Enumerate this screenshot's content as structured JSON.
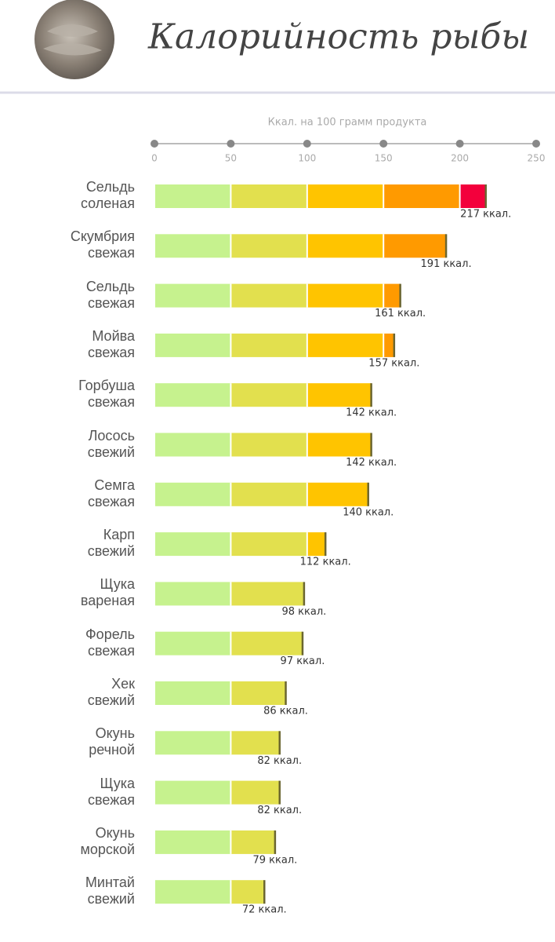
{
  "chart_data": {
    "type": "bar",
    "orientation": "horizontal",
    "title": "Калорийность рыбы",
    "xlabel": "Ккал. на 100 грамм продукта",
    "categories": [
      "Сельдь соленая",
      "Скумбрия свежая",
      "Сельдь свежая",
      "Мойва свежая",
      "Горбуша свежая",
      "Лосось свежий",
      "Семга свежая",
      "Карп свежий",
      "Щука вареная",
      "Форель свежая",
      "Хек свежий",
      "Окунь речной",
      "Щука свежая",
      "Окунь морской",
      "Минтай свежий"
    ],
    "values": [
      217,
      191,
      161,
      157,
      142,
      142,
      140,
      112,
      98,
      97,
      86,
      82,
      82,
      79,
      72
    ],
    "value_labels": [
      "217 ккал.",
      "191 ккал.",
      "161 ккал.",
      "157 ккал.",
      "142 ккал.",
      "142 ккал.",
      "140 ккал.",
      "112 ккал.",
      "98 ккал.",
      "97 ккал.",
      "86 ккал.",
      "82 ккал.",
      "82 ккал.",
      "79 ккал.",
      "72 ккал."
    ],
    "band_colors": [
      "#c6f28e",
      "#e2e04e",
      "#ffc400",
      "#ff9a00",
      "#f3003c"
    ],
    "xlim": [
      0,
      250
    ],
    "xticks": [
      0,
      50,
      100,
      150,
      200,
      250
    ]
  }
}
